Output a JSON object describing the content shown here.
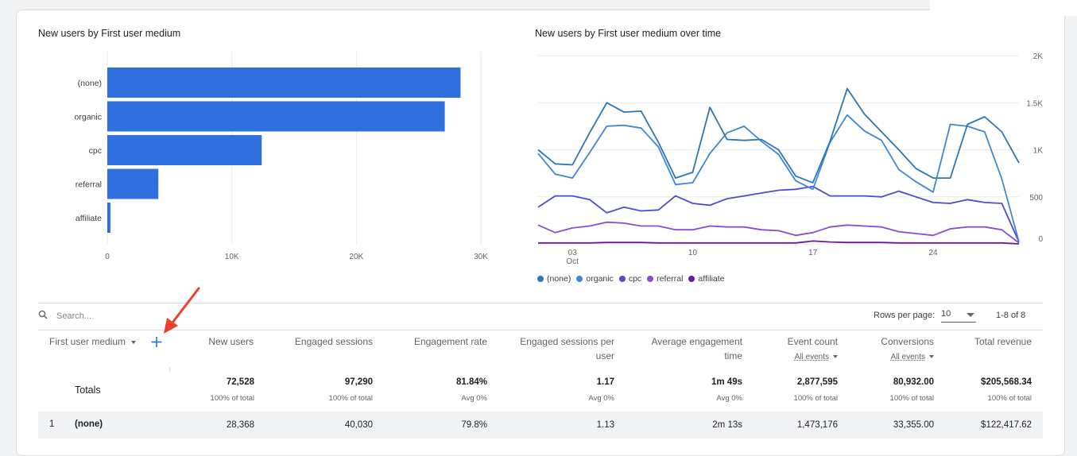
{
  "bar_chart": {
    "title": "New users by First user medium",
    "chart_data": {
      "type": "bar",
      "orientation": "horizontal",
      "categories": [
        "(none)",
        "organic",
        "cpc",
        "referral",
        "affiliate"
      ],
      "values": [
        28368,
        27100,
        12400,
        4100,
        250
      ],
      "xlim": [
        0,
        30000
      ],
      "ticks": [
        "0",
        "10K",
        "20K",
        "30K"
      ],
      "color": "#2f6fde",
      "grid": true
    }
  },
  "line_chart": {
    "title": "New users by First user medium over time",
    "chart_data": {
      "type": "line",
      "x_ticks": [
        "03\nOct",
        "10",
        "17",
        "24"
      ],
      "y_ticks": [
        "2K",
        "1.5K",
        "1K",
        "500",
        "0"
      ],
      "ylim": [
        0,
        2000
      ],
      "series": [
        {
          "name": "(none)",
          "color": "#2b76b6",
          "values": [
            1000,
            850,
            840,
            1180,
            1500,
            1400,
            1410,
            1080,
            700,
            760,
            1450,
            1110,
            1100,
            1110,
            1000,
            720,
            650,
            1090,
            1650,
            1380,
            1190,
            1000,
            800,
            700,
            700,
            1270,
            1350,
            1190,
            860
          ]
        },
        {
          "name": "organic",
          "color": "#3d87d6",
          "values": [
            960,
            740,
            700,
            970,
            1250,
            1260,
            1230,
            1030,
            630,
            650,
            960,
            1180,
            1250,
            1090,
            950,
            670,
            580,
            1080,
            1370,
            1200,
            1100,
            790,
            660,
            550,
            1270,
            1250,
            1190,
            690,
            20
          ]
        },
        {
          "name": "cpc",
          "color": "#4e4bd4",
          "values": [
            390,
            510,
            510,
            470,
            330,
            390,
            350,
            360,
            510,
            430,
            410,
            480,
            510,
            540,
            570,
            580,
            610,
            510,
            510,
            510,
            500,
            560,
            500,
            440,
            430,
            470,
            440,
            430,
            20
          ]
        },
        {
          "name": "referral",
          "color": "#8a4bd6",
          "values": [
            200,
            120,
            170,
            190,
            230,
            220,
            190,
            190,
            150,
            150,
            190,
            180,
            180,
            150,
            140,
            90,
            120,
            180,
            200,
            190,
            180,
            130,
            110,
            90,
            160,
            180,
            180,
            150,
            10
          ]
        },
        {
          "name": "affiliate",
          "color": "#6a1b9a",
          "values": [
            10,
            10,
            10,
            10,
            15,
            15,
            15,
            10,
            10,
            10,
            10,
            10,
            10,
            10,
            10,
            10,
            30,
            20,
            15,
            15,
            15,
            10,
            10,
            10,
            10,
            10,
            10,
            10,
            0
          ]
        }
      ]
    }
  },
  "search": {
    "placeholder": "Search..."
  },
  "pagination": {
    "rows_label": "Rows per page:",
    "rows_value": "10",
    "range": "1-8 of 8"
  },
  "table": {
    "dimension_header": "First user medium",
    "headers": {
      "new_users": "New users",
      "engaged_sessions": "Engaged sessions",
      "engagement_rate": "Engagement rate",
      "espu_l1": "Engaged sessions per",
      "espu_l2": "user",
      "aet_l1": "Average engagement",
      "aet_l2": "time",
      "event_count": "Event count",
      "event_sub": "All events",
      "conversions": "Conversions",
      "conv_sub": "All events",
      "revenue": "Total revenue"
    },
    "totals": {
      "label": "Totals",
      "new_users": "72,528",
      "new_users_sub": "100% of total",
      "engaged_sessions": "97,290",
      "engaged_sessions_sub": "100% of total",
      "engagement_rate": "81.84%",
      "engagement_rate_sub": "Avg 0%",
      "espu": "1.17",
      "espu_sub": "Avg 0%",
      "aet": "1m 49s",
      "aet_sub": "Avg 0%",
      "event_count": "2,877,595",
      "event_count_sub": "100% of total",
      "conversions": "80,932.00",
      "conversions_sub": "100% of total",
      "revenue": "$205,568.34",
      "revenue_sub": "100% of total"
    },
    "rows": [
      {
        "index": "1",
        "medium": "(none)",
        "new_users": "28,368",
        "engaged_sessions": "40,030",
        "engagement_rate": "79.8%",
        "espu": "1.13",
        "aet": "2m 13s",
        "event_count": "1,473,176",
        "conversions": "33,355.00",
        "revenue": "$122,417.62"
      }
    ]
  },
  "annotation": {
    "arrow_color": "#e8412c"
  }
}
